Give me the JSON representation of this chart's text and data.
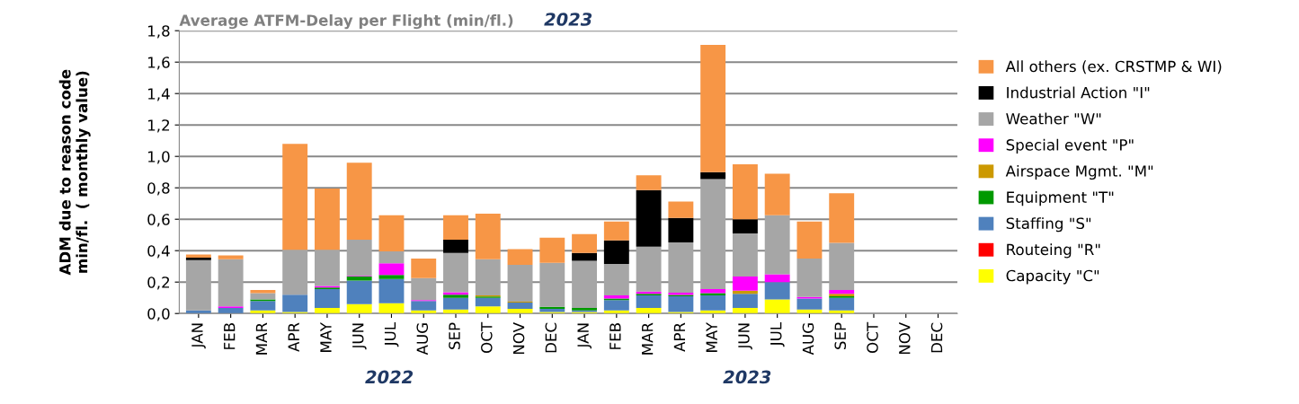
{
  "chart_data": {
    "type": "bar",
    "stacked": true,
    "title": "Average ATFM-Delay per Flight (min/fl.)",
    "ylabel": "ADM due to reason code\nmin/fl.  ( monthly value)",
    "categories": [
      "JAN",
      "FEB",
      "MAR",
      "APR",
      "MAY",
      "JUN",
      "JUL",
      "AUG",
      "SEP",
      "OCT",
      "NOV",
      "DEC",
      "JAN",
      "FEB",
      "MAR",
      "APR",
      "MAY",
      "JUN",
      "JUL",
      "AUG",
      "SEP",
      "OCT",
      "NOV",
      "DEC"
    ],
    "ylim": [
      0,
      1.8
    ],
    "yticks": [
      {
        "value": 0,
        "label": "0,0"
      },
      {
        "value": 0.2,
        "label": "0,2"
      },
      {
        "value": 0.4,
        "label": "0,4"
      },
      {
        "value": 0.6,
        "label": "0,6"
      },
      {
        "value": 0.8,
        "label": "0,8"
      },
      {
        "value": 1.0,
        "label": "1,0"
      },
      {
        "value": 1.2,
        "label": "1,2"
      },
      {
        "value": 1.4,
        "label": "1,4"
      },
      {
        "value": 1.6,
        "label": "1,6"
      },
      {
        "value": 1.8,
        "label": "1,8"
      }
    ],
    "grid": "y",
    "legend": "right",
    "annotations": [
      "2023",
      "2022",
      "2023"
    ],
    "series": [
      {
        "name": "Capacity \"C\"",
        "color": "#ffff00",
        "values": [
          0,
          0,
          0.02,
          0.01,
          0.035,
          0.06,
          0.065,
          0.02,
          0.025,
          0.045,
          0.03,
          0.01,
          0.01,
          0.02,
          0.035,
          0.01,
          0.02,
          0.035,
          0.09,
          0.025,
          0.02,
          null,
          null,
          null
        ]
      },
      {
        "name": "Routeing \"R\"",
        "color": "#ff0000",
        "values": [
          0,
          0,
          0,
          0,
          0,
          0,
          0,
          0,
          0,
          0,
          0,
          0,
          0,
          0,
          0,
          0,
          0,
          0,
          0,
          0,
          0,
          null,
          null,
          null
        ]
      },
      {
        "name": "Staffing \"S\"",
        "color": "#4f81bd",
        "values": [
          0.02,
          0.035,
          0.06,
          0.11,
          0.12,
          0.15,
          0.155,
          0.06,
          0.075,
          0.055,
          0.04,
          0.02,
          0.01,
          0.065,
          0.08,
          0.1,
          0.095,
          0.09,
          0.11,
          0.07,
          0.08,
          null,
          null,
          null
        ]
      },
      {
        "name": "Equipment \"T\"",
        "color": "#009900",
        "values": [
          0,
          0,
          0.01,
          0,
          0.01,
          0.025,
          0.025,
          0,
          0.02,
          0.008,
          0,
          0.012,
          0.015,
          0.01,
          0.01,
          0.008,
          0.015,
          0,
          0,
          0,
          0.01,
          null,
          null,
          null
        ]
      },
      {
        "name": "Airspace Mgmt. \"M\"",
        "color": "#cc9900",
        "values": [
          0,
          0,
          0,
          0,
          0,
          0,
          0,
          0,
          0,
          0.007,
          0.005,
          0,
          0,
          0,
          0,
          0,
          0,
          0.02,
          0,
          0,
          0.015,
          null,
          null,
          null
        ]
      },
      {
        "name": "Special event \"P\"",
        "color": "#ff00ff",
        "values": [
          0,
          0.01,
          0,
          0,
          0.01,
          0.005,
          0.075,
          0.005,
          0.015,
          0,
          0,
          0,
          0,
          0.02,
          0.015,
          0.015,
          0.025,
          0.09,
          0.05,
          0.01,
          0.025,
          null,
          null,
          null
        ]
      },
      {
        "name": "Weather \"W\"",
        "color": "#a6a6a6",
        "values": [
          0.32,
          0.3,
          0.04,
          0.285,
          0.23,
          0.23,
          0.075,
          0.14,
          0.25,
          0.23,
          0.235,
          0.28,
          0.3,
          0.2,
          0.285,
          0.32,
          0.7,
          0.275,
          0.375,
          0.245,
          0.3,
          null,
          null,
          null
        ]
      },
      {
        "name": "Industrial Action \"I\"",
        "color": "#000000",
        "values": [
          0.015,
          0,
          0,
          0,
          0,
          0,
          0,
          0,
          0.085,
          0,
          0,
          0,
          0.05,
          0.15,
          0.36,
          0.155,
          0.045,
          0.09,
          0,
          0,
          0,
          null,
          null,
          null
        ]
      },
      {
        "name": "All others (ex. CRSTMP & WI)",
        "color": "#f79646",
        "values": [
          0.02,
          0.025,
          0.02,
          0.675,
          0.39,
          0.49,
          0.23,
          0.125,
          0.155,
          0.29,
          0.1,
          0.16,
          0.12,
          0.12,
          0.095,
          0.105,
          0.81,
          0.35,
          0.265,
          0.235,
          0.315,
          null,
          null,
          null
        ]
      }
    ]
  }
}
